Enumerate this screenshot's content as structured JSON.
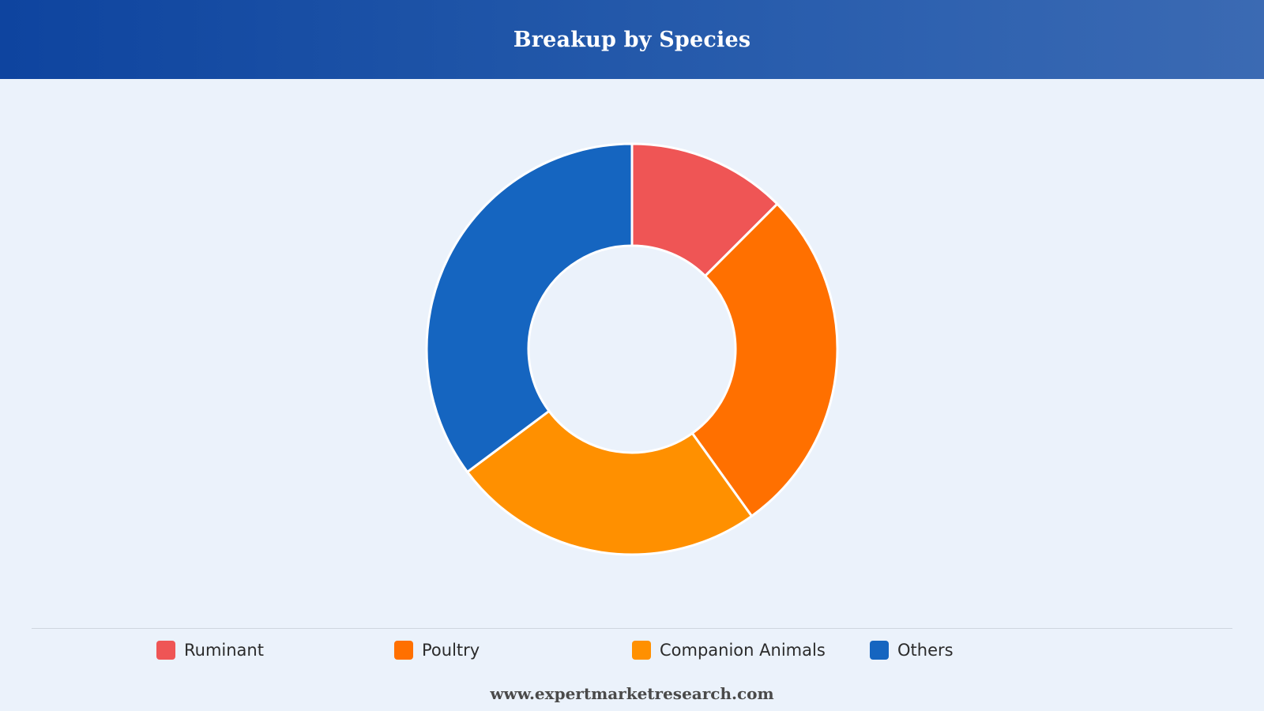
{
  "header": {
    "title": "Breakup by Species"
  },
  "chart_data": {
    "type": "pie",
    "donut": true,
    "categories": [
      "Ruminant",
      "Poultry",
      "Companion Animals",
      "Others"
    ],
    "values": [
      12.5,
      27.6,
      24.7,
      35.2
    ],
    "colors": [
      "#ef5555",
      "#ff7000",
      "#ff9000",
      "#1565c0"
    ],
    "legend_position": "bottom"
  },
  "footer": {
    "website": "www.expertmarketresearch.com"
  }
}
